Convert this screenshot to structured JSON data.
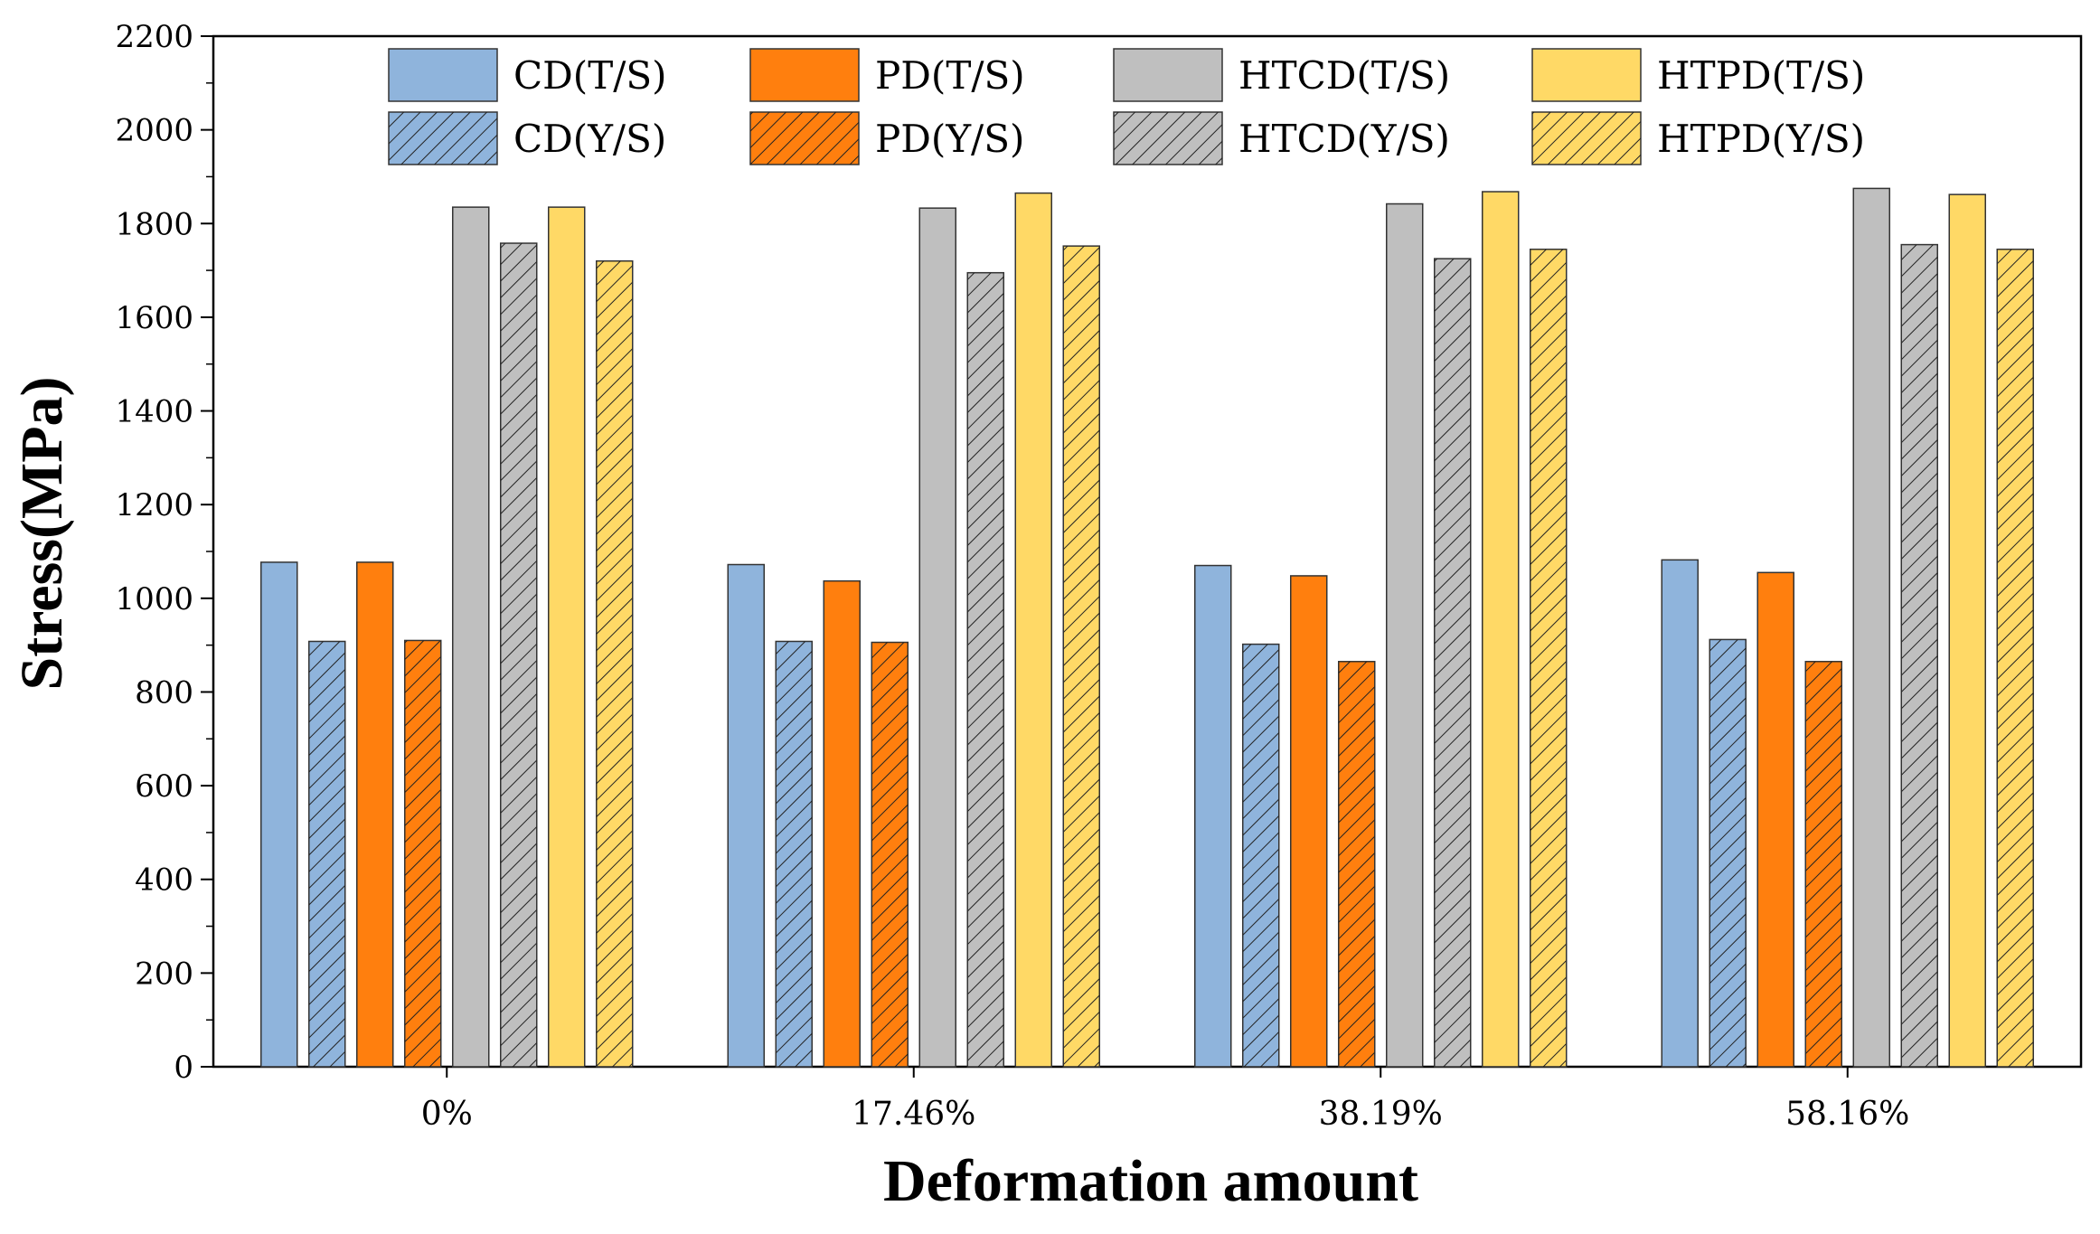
{
  "chart_data": {
    "type": "bar",
    "xlabel": "Deformation amount",
    "ylabel": "Stress(MPa)",
    "ylim": [
      0,
      2200
    ],
    "yticks": [
      0,
      200,
      400,
      600,
      800,
      1000,
      1200,
      1400,
      1600,
      1800,
      2000,
      2200
    ],
    "categories": [
      "0%",
      "17.46%",
      "38.19%",
      "58.16%"
    ],
    "series": [
      {
        "name": "CD(T/S)",
        "color": "#8FB4DC",
        "hatched": false,
        "values": [
          1077,
          1072,
          1070,
          1082
        ]
      },
      {
        "name": "CD(Y/S)",
        "color": "#8FB4DC",
        "hatched": true,
        "values": [
          908,
          908,
          902,
          912
        ]
      },
      {
        "name": "PD(T/S)",
        "color": "#FF7F0E",
        "hatched": false,
        "values": [
          1077,
          1037,
          1048,
          1055
        ]
      },
      {
        "name": "PD(Y/S)",
        "color": "#FF7F0E",
        "hatched": true,
        "values": [
          910,
          906,
          865,
          865
        ]
      },
      {
        "name": "HTCD(T/S)",
        "color": "#BFBFBF",
        "hatched": false,
        "values": [
          1835,
          1833,
          1842,
          1875
        ]
      },
      {
        "name": "HTCD(Y/S)",
        "color": "#BFBFBF",
        "hatched": true,
        "values": [
          1758,
          1695,
          1725,
          1755
        ]
      },
      {
        "name": "HTPD(T/S)",
        "color": "#FFD966",
        "hatched": false,
        "values": [
          1835,
          1865,
          1868,
          1862
        ]
      },
      {
        "name": "HTPD(Y/S)",
        "color": "#FFD966",
        "hatched": true,
        "values": [
          1720,
          1752,
          1745,
          1745
        ]
      }
    ],
    "legend_position": "top",
    "grid": false
  }
}
